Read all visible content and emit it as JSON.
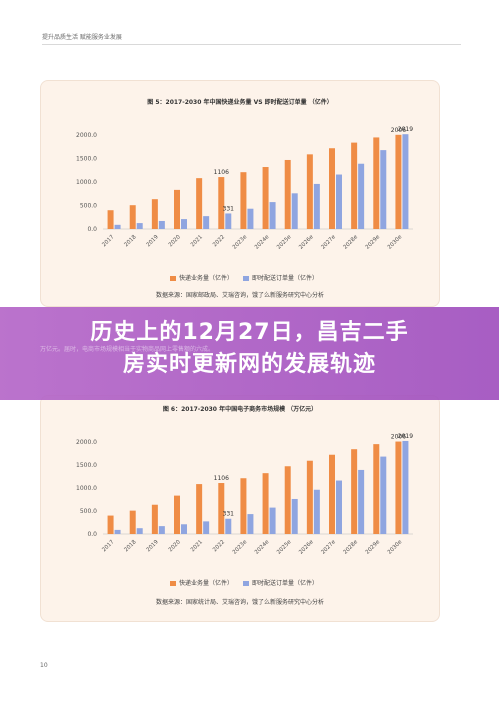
{
  "page": {
    "header": "提升品质生活 赋能服务业发展",
    "page_number": "10"
  },
  "overlay": {
    "title_line1": "历史上的12月27日，昌吉二手",
    "title_line2": "房实时更新网的发展轨迹",
    "faint_text": "万亿元。届时，电商市场规模相当于实物商品网上零售额的六成。"
  },
  "colors": {
    "series1": "#ef8c45",
    "series2": "#8fa5e0",
    "card_bg": "#fdf3ea",
    "overlay": "#b567c8"
  },
  "chart_data": [
    {
      "type": "bar",
      "title": "图 5：2017-2030 年中国快递业务量 VS 即时配送订单量 （亿件）",
      "categories": [
        "2017",
        "2018",
        "2019",
        "2020",
        "2021",
        "2022",
        "2023e",
        "2024e",
        "2025e",
        "2026e",
        "2027e",
        "2028e",
        "2029e",
        "2030e"
      ],
      "series": [
        {
          "name": "快递业务量（亿件）",
          "values": [
            400,
            507,
            635,
            833,
            1083,
            1106,
            1210,
            1320,
            1470,
            1590,
            1720,
            1840,
            1950,
            2006
          ]
        },
        {
          "name": "即时配送订单量（亿件）",
          "values": [
            89,
            126,
            171,
            211,
            274,
            331,
            432,
            573,
            760,
            960,
            1160,
            1390,
            1680,
            2019
          ]
        }
      ],
      "data_labels": [
        {
          "category": "2022",
          "series": 0,
          "text": "1106"
        },
        {
          "category": "2022",
          "series": 1,
          "text": "331"
        },
        {
          "category": "2030e",
          "series": 0,
          "text": "2006"
        },
        {
          "category": "2030e",
          "series": 1,
          "text": "2019"
        }
      ],
      "yticks": [
        "0.0",
        "500.0",
        "1000.0",
        "1500.0",
        "2000.0"
      ],
      "ylim": [
        0,
        2300
      ],
      "grid": false,
      "legend": "bottom",
      "source": "数据来源：国家邮政局、艾瑞咨询，饿了么新服务研究中心分析"
    },
    {
      "type": "bar",
      "title": "图 6：2017-2030 年中国电子商务市场规模 （万亿元）",
      "categories": [
        "2017",
        "2018",
        "2019",
        "2020",
        "2021",
        "2022",
        "2023e",
        "2024e",
        "2025e",
        "2026e",
        "2027e",
        "2028e",
        "2029e",
        "2030e"
      ],
      "series": [
        {
          "name": "快递业务量（亿件）",
          "values": [
            400,
            507,
            635,
            833,
            1083,
            1106,
            1210,
            1320,
            1470,
            1590,
            1720,
            1840,
            1950,
            2006
          ]
        },
        {
          "name": "即时配送订单量（亿件）",
          "values": [
            89,
            126,
            171,
            211,
            274,
            331,
            432,
            573,
            760,
            960,
            1160,
            1390,
            1680,
            2019
          ]
        }
      ],
      "data_labels": [
        {
          "category": "2022",
          "series": 0,
          "text": "1106"
        },
        {
          "category": "2022",
          "series": 1,
          "text": "331"
        },
        {
          "category": "2030e",
          "series": 0,
          "text": "2006"
        },
        {
          "category": "2030e",
          "series": 1,
          "text": "2019"
        }
      ],
      "yticks": [
        "0.0",
        "500.0",
        "1000.0",
        "1500.0",
        "2000.0"
      ],
      "ylim": [
        0,
        2300
      ],
      "grid": false,
      "legend": "bottom",
      "source": "数据来源：国家统计局、艾瑞咨询，饿了么新服务研究中心分析"
    }
  ]
}
